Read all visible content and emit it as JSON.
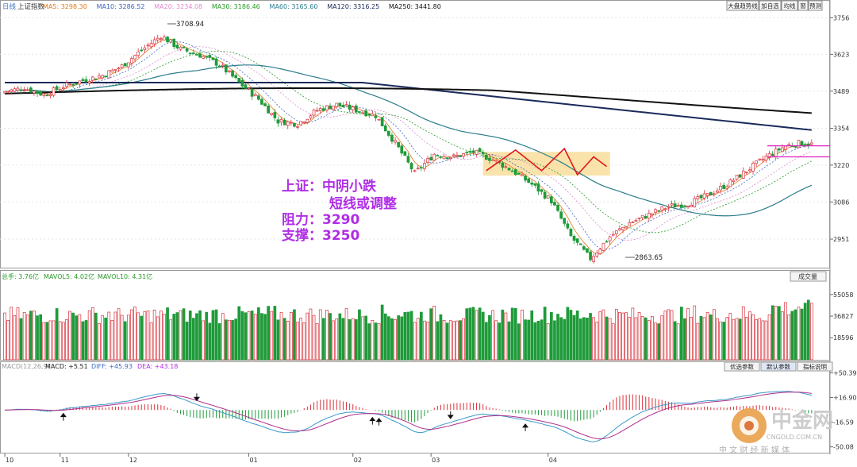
{
  "header": {
    "period": "日线",
    "index_name": "上证指数",
    "ma": [
      {
        "label": "MA5: 3298.30",
        "color": "#e07a1f"
      },
      {
        "label": "MA10: 3286.52",
        "color": "#3a63c2"
      },
      {
        "label": "MA20: 3234.08",
        "color": "#e08bd0"
      },
      {
        "label": "MA30: 3186.46",
        "color": "#2a9a2a"
      },
      {
        "label": "MA60: 3165.60",
        "color": "#2a7d8c"
      },
      {
        "label": "MA120: 3316.25",
        "color": "#1a2a5a"
      },
      {
        "label": "MA250: 3441.80",
        "color": "#111111"
      }
    ]
  },
  "buttons": [
    "大盘趋势线",
    "加自选",
    "均线",
    "窗",
    "预测"
  ],
  "price_axis": [
    "3756",
    "3623",
    "3489",
    "3354",
    "3220",
    "3086",
    "2951"
  ],
  "annotations": {
    "high": "3708.94",
    "low": "2863.65",
    "comment_lines": [
      "上证：中阴小跌",
      "短线或调整",
      "阻力：3290",
      "支撑：3250"
    ]
  },
  "volume_header": {
    "total": "总手: 3.76亿",
    "mavol5": "MAVOL5: 4.02亿",
    "mavol10": "MAVOL10: 4.31亿",
    "button": "成交量",
    "axis": [
      "55058",
      "36827",
      "18596"
    ]
  },
  "macd_header": {
    "params": "MACD(12,26,9)",
    "macd": "MACD: +5.51",
    "diff": "DIFF: +45.93",
    "dea": "DEA: +43.18",
    "buttons": [
      "优选参数",
      "默认参数",
      "指标说明"
    ],
    "axis": [
      "+50.39",
      "+16.90",
      "-16.59",
      "-50.08"
    ]
  },
  "date_axis": [
    "10",
    "11",
    "12",
    "01",
    "02",
    "03",
    "04"
  ],
  "watermark": {
    "brand": "中金网",
    "url": "CNGOLD.COM.CN",
    "tagline": "中 文 财 经 新 媒 体"
  },
  "colors": {
    "up": "#d9313b",
    "down": "#1f9a3a",
    "purple": "#b02ee6",
    "box": "#f7d98f"
  },
  "chart_data": {
    "type": "candlestick",
    "title": "上证指数 日线",
    "ylim": [
      2850,
      3780
    ],
    "x_months": [
      "10",
      "11",
      "12",
      "01",
      "02",
      "03",
      "04"
    ],
    "close_path": [
      [
        0,
        3488
      ],
      [
        6,
        3500
      ],
      [
        12,
        3476
      ],
      [
        18,
        3506
      ],
      [
        24,
        3528
      ],
      [
        30,
        3546
      ],
      [
        36,
        3580
      ],
      [
        42,
        3638
      ],
      [
        48,
        3690
      ],
      [
        54,
        3642
      ],
      [
        60,
        3620
      ],
      [
        66,
        3585
      ],
      [
        72,
        3520
      ],
      [
        78,
        3460
      ],
      [
        84,
        3380
      ],
      [
        90,
        3370
      ],
      [
        96,
        3420
      ],
      [
        102,
        3440
      ],
      [
        108,
        3420
      ],
      [
        114,
        3400
      ],
      [
        120,
        3300
      ],
      [
        126,
        3190
      ],
      [
        132,
        3260
      ],
      [
        138,
        3250
      ],
      [
        144,
        3268
      ],
      [
        150,
        3240
      ],
      [
        156,
        3200
      ],
      [
        162,
        3150
      ],
      [
        168,
        3090
      ],
      [
        174,
        2960
      ],
      [
        180,
        2880
      ],
      [
        186,
        2960
      ],
      [
        192,
        3010
      ],
      [
        198,
        3040
      ],
      [
        204,
        3070
      ],
      [
        210,
        3080
      ],
      [
        216,
        3110
      ],
      [
        222,
        3150
      ],
      [
        228,
        3200
      ],
      [
        234,
        3250
      ],
      [
        240,
        3290
      ],
      [
        244,
        3300
      ],
      [
        248,
        3296
      ]
    ],
    "resistance": 3290,
    "support": 3250,
    "high_label": 3708.94,
    "low_label": 2863.65
  }
}
